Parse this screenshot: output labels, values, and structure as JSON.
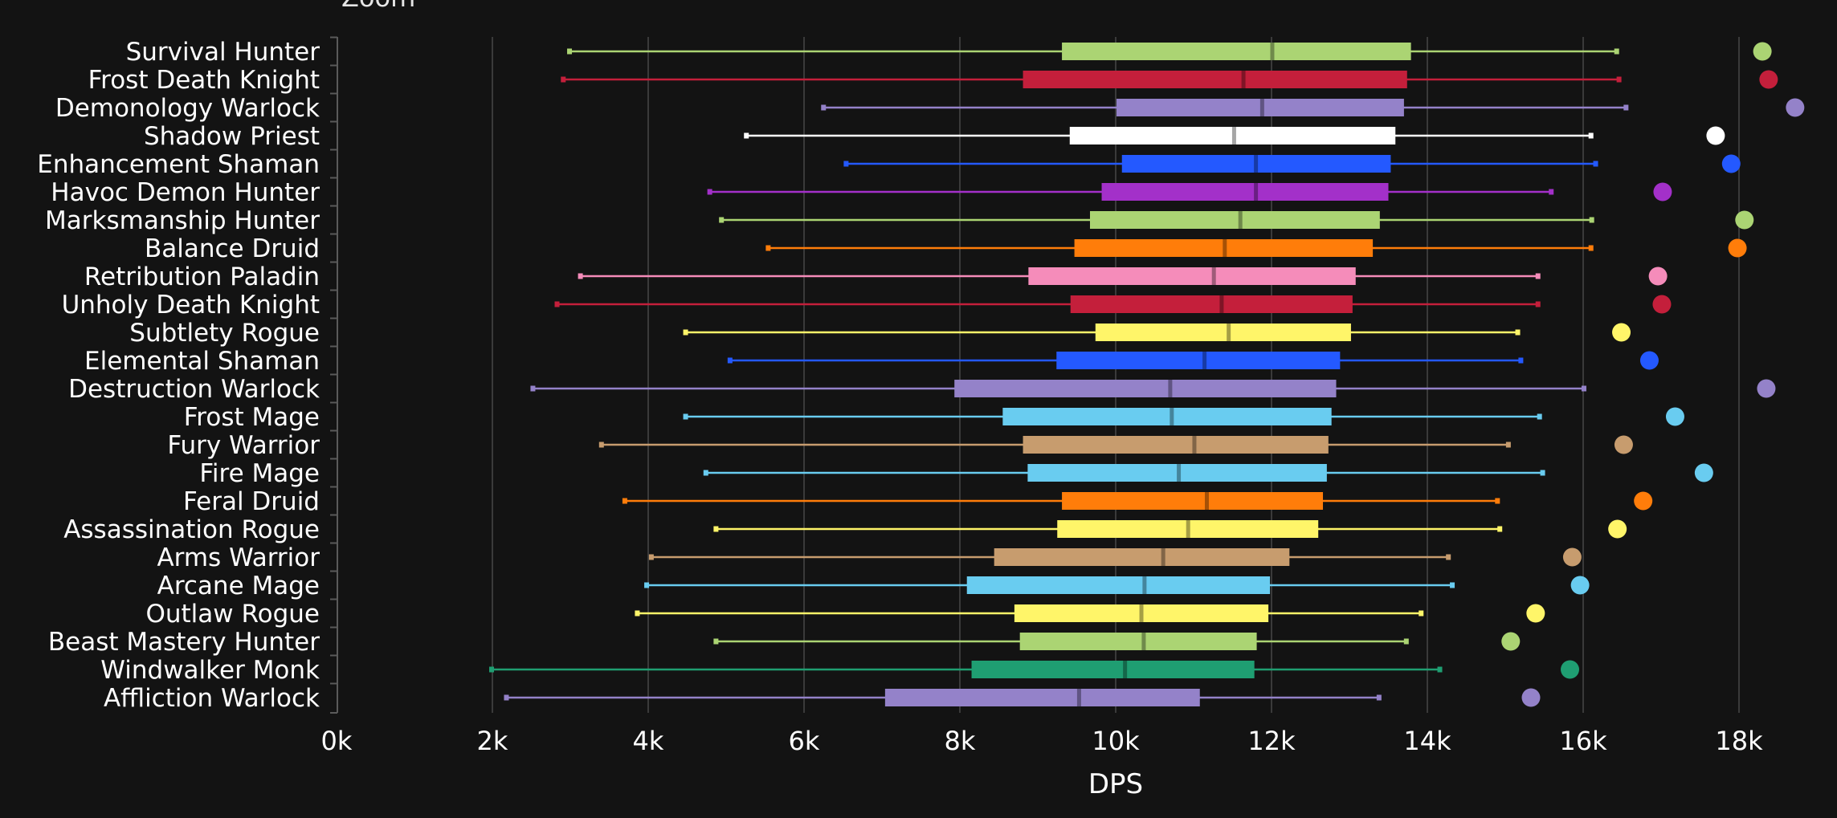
{
  "header": {
    "zoom_label": "Zoom"
  },
  "colors": {
    "background": "#131313",
    "grid": "#3a3a3a",
    "text": "#ffffff"
  },
  "chart_data": {
    "type": "boxplot",
    "xlabel": "DPS",
    "ylabel": "",
    "xlim": [
      0,
      19000
    ],
    "x_ticks": [
      {
        "value": 0,
        "label": "0k"
      },
      {
        "value": 2000,
        "label": "2k"
      },
      {
        "value": 4000,
        "label": "4k"
      },
      {
        "value": 6000,
        "label": "6k"
      },
      {
        "value": 8000,
        "label": "8k"
      },
      {
        "value": 10000,
        "label": "10k"
      },
      {
        "value": 12000,
        "label": "12k"
      },
      {
        "value": 14000,
        "label": "14k"
      },
      {
        "value": 16000,
        "label": "16k"
      },
      {
        "value": 18000,
        "label": "18k"
      }
    ],
    "grid": true,
    "series": [
      {
        "name": "Survival Hunter",
        "color": "#abd473",
        "min": 2990,
        "q1": 9310,
        "median": 12010,
        "q3": 13790,
        "max": 16430,
        "point": 18300
      },
      {
        "name": "Frost Death Knight",
        "color": "#c41f3b",
        "min": 2910,
        "q1": 8810,
        "median": 11640,
        "q3": 13740,
        "max": 16460,
        "point": 18380
      },
      {
        "name": "Demonology Warlock",
        "color": "#9482c9",
        "min": 6250,
        "q1": 10010,
        "median": 11880,
        "q3": 13700,
        "max": 16550,
        "point": 18720
      },
      {
        "name": "Shadow Priest",
        "color": "#ffffff",
        "min": 5260,
        "q1": 9410,
        "median": 11520,
        "q3": 13590,
        "max": 16100,
        "point": 17700
      },
      {
        "name": "Enhancement Shaman",
        "color": "#2459ff",
        "min": 6540,
        "q1": 10080,
        "median": 11800,
        "q3": 13530,
        "max": 16160,
        "point": 17900
      },
      {
        "name": "Havoc Demon Hunter",
        "color": "#a330c9",
        "min": 4790,
        "q1": 9820,
        "median": 11800,
        "q3": 13500,
        "max": 15590,
        "point": 17020
      },
      {
        "name": "Marksmanship Hunter",
        "color": "#abd473",
        "min": 4940,
        "q1": 9670,
        "median": 11600,
        "q3": 13390,
        "max": 16110,
        "point": 18070
      },
      {
        "name": "Balance Druid",
        "color": "#ff7d0a",
        "min": 5540,
        "q1": 9470,
        "median": 11400,
        "q3": 13300,
        "max": 16100,
        "point": 17980
      },
      {
        "name": "Retribution Paladin",
        "color": "#f58cba",
        "min": 3130,
        "q1": 8880,
        "median": 11260,
        "q3": 13080,
        "max": 15420,
        "point": 16960
      },
      {
        "name": "Unholy Death Knight",
        "color": "#c41f3b",
        "min": 2830,
        "q1": 9420,
        "median": 11360,
        "q3": 13040,
        "max": 15420,
        "point": 17010
      },
      {
        "name": "Subtlety Rogue",
        "color": "#fff569",
        "min": 4480,
        "q1": 9740,
        "median": 11450,
        "q3": 13020,
        "max": 15160,
        "point": 16490
      },
      {
        "name": "Elemental Shaman",
        "color": "#2459ff",
        "min": 5050,
        "q1": 9240,
        "median": 11140,
        "q3": 12880,
        "max": 15200,
        "point": 16850
      },
      {
        "name": "Destruction Warlock",
        "color": "#9482c9",
        "min": 2520,
        "q1": 7930,
        "median": 10700,
        "q3": 12830,
        "max": 16010,
        "point": 18350
      },
      {
        "name": "Frost Mage",
        "color": "#69ccf0",
        "min": 4480,
        "q1": 8550,
        "median": 10720,
        "q3": 12770,
        "max": 15440,
        "point": 17180
      },
      {
        "name": "Fury Warrior",
        "color": "#c79c6e",
        "min": 3400,
        "q1": 8810,
        "median": 11010,
        "q3": 12730,
        "max": 15040,
        "point": 16520
      },
      {
        "name": "Fire Mage",
        "color": "#69ccf0",
        "min": 4740,
        "q1": 8870,
        "median": 10810,
        "q3": 12710,
        "max": 15480,
        "point": 17550
      },
      {
        "name": "Feral Druid",
        "color": "#ff7d0a",
        "min": 3700,
        "q1": 9310,
        "median": 11170,
        "q3": 12660,
        "max": 14900,
        "point": 16770
      },
      {
        "name": "Assassination Rogue",
        "color": "#fff569",
        "min": 4870,
        "q1": 9250,
        "median": 10930,
        "q3": 12600,
        "max": 14930,
        "point": 16440
      },
      {
        "name": "Arms Warrior",
        "color": "#c79c6e",
        "min": 4040,
        "q1": 8440,
        "median": 10610,
        "q3": 12230,
        "max": 14270,
        "point": 15860
      },
      {
        "name": "Arcane Mage",
        "color": "#69ccf0",
        "min": 3980,
        "q1": 8090,
        "median": 10370,
        "q3": 11980,
        "max": 14320,
        "point": 15960
      },
      {
        "name": "Outlaw Rogue",
        "color": "#fff569",
        "min": 3860,
        "q1": 8700,
        "median": 10330,
        "q3": 11960,
        "max": 13920,
        "point": 15390
      },
      {
        "name": "Beast Mastery Hunter",
        "color": "#abd473",
        "min": 4870,
        "q1": 8770,
        "median": 10360,
        "q3": 11810,
        "max": 13730,
        "point": 15070
      },
      {
        "name": "Windwalker Monk",
        "color": "#1f9e72",
        "min": 1990,
        "q1": 8150,
        "median": 10120,
        "q3": 11780,
        "max": 14160,
        "point": 15830
      },
      {
        "name": "Affliction Warlock",
        "color": "#9482c9",
        "min": 2180,
        "q1": 7040,
        "median": 9530,
        "q3": 11080,
        "max": 13380,
        "point": 15330
      }
    ]
  }
}
